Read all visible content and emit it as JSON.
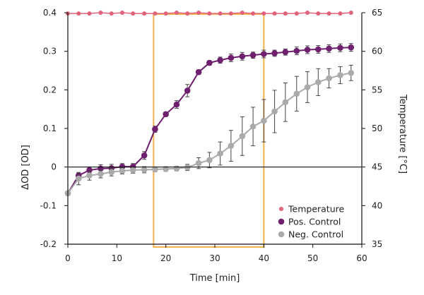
{
  "chart_data": {
    "type": "line",
    "title": "",
    "xlabel": "Time [min]",
    "ylabel": "ΔOD [OD]",
    "y2label": "Temperature [°C]",
    "xlim": [
      0,
      60
    ],
    "ylim": [
      -0.2,
      0.4
    ],
    "y2lim": [
      35,
      65
    ],
    "x_ticks": [
      "0",
      "10",
      "20",
      "30",
      "40",
      "50",
      "60"
    ],
    "y_ticks": [
      "-0.2",
      "-0.1",
      "0",
      "0.1",
      "0.2",
      "0.3",
      "0.4"
    ],
    "y2_ticks": [
      "35",
      "40",
      "45",
      "50",
      "55",
      "60",
      "65"
    ],
    "legend_position": "lower-right",
    "highlight_x_range": [
      17.5,
      40
    ],
    "series": [
      {
        "name": "Temperature",
        "axis": "right",
        "color": "#e0637a",
        "x": [
          0,
          2.2,
          4.4,
          6.7,
          8.9,
          11.1,
          13.3,
          15.6,
          17.8,
          20,
          22.2,
          24.4,
          26.7,
          28.9,
          31.1,
          33.3,
          35.6,
          37.8,
          40,
          42.2,
          44.4,
          46.7,
          48.9,
          51.1,
          53.3,
          55.6,
          57.8
        ],
        "y": [
          64.9,
          64.9,
          64.9,
          65.0,
          64.9,
          65.0,
          64.9,
          64.9,
          64.9,
          64.9,
          65.0,
          64.9,
          65.0,
          64.9,
          64.9,
          64.9,
          65.0,
          64.9,
          64.9,
          64.9,
          64.9,
          64.9,
          65.0,
          64.9,
          64.9,
          64.9,
          65.0
        ]
      },
      {
        "name": "Pos. Control",
        "axis": "left",
        "color": "#6e1f6e",
        "x": [
          0,
          2.2,
          4.4,
          6.7,
          8.9,
          11.1,
          13.3,
          15.6,
          17.8,
          20,
          22.2,
          24.4,
          26.7,
          28.9,
          31.1,
          33.3,
          35.6,
          37.8,
          40,
          42.2,
          44.4,
          46.7,
          48.9,
          51.1,
          53.3,
          55.6,
          57.8
        ],
        "y": [
          -0.068,
          -0.022,
          -0.008,
          -0.004,
          -0.003,
          0.001,
          0.001,
          0.03,
          0.098,
          0.137,
          0.162,
          0.198,
          0.246,
          0.27,
          0.277,
          0.283,
          0.287,
          0.29,
          0.293,
          0.295,
          0.298,
          0.301,
          0.304,
          0.305,
          0.307,
          0.309,
          0.31
        ],
        "error": [
          0.004,
          0.006,
          0.008,
          0.01,
          0.01,
          0.008,
          0.008,
          0.01,
          0.008,
          0.006,
          0.01,
          0.016,
          0.006,
          0.006,
          0.008,
          0.01,
          0.01,
          0.008,
          0.01,
          0.008,
          0.008,
          0.01,
          0.01,
          0.01,
          0.01,
          0.01,
          0.01
        ]
      },
      {
        "name": "Neg. Control",
        "axis": "left",
        "color": "#aaaaaa",
        "x": [
          0,
          2.2,
          4.4,
          6.7,
          8.9,
          11.1,
          13.3,
          15.6,
          17.8,
          20,
          22.2,
          24.4,
          26.7,
          28.9,
          31.1,
          33.3,
          35.6,
          37.8,
          40,
          42.2,
          44.4,
          46.7,
          48.9,
          51.1,
          53.3,
          55.6,
          57.8
        ],
        "y": [
          -0.068,
          -0.03,
          -0.022,
          -0.018,
          -0.013,
          -0.01,
          -0.008,
          -0.007,
          -0.006,
          -0.005,
          -0.004,
          -0.001,
          0.01,
          0.018,
          0.035,
          0.055,
          0.08,
          0.105,
          0.12,
          0.144,
          0.168,
          0.19,
          0.207,
          0.22,
          0.23,
          0.238,
          0.244
        ],
        "error": [
          0.004,
          0.016,
          0.012,
          0.01,
          0.01,
          0.008,
          0.008,
          0.008,
          0.006,
          0.006,
          0.006,
          0.008,
          0.014,
          0.02,
          0.03,
          0.04,
          0.05,
          0.05,
          0.055,
          0.055,
          0.05,
          0.045,
          0.04,
          0.035,
          0.025,
          0.022,
          0.02
        ]
      }
    ]
  }
}
